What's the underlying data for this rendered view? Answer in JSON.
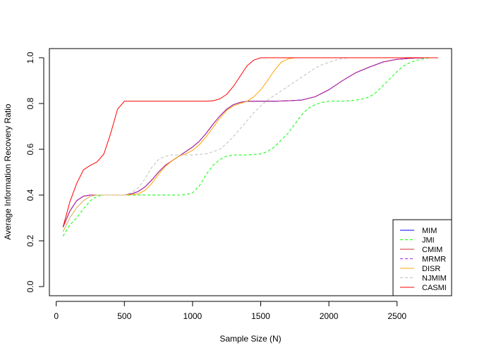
{
  "chart_data": {
    "type": "line",
    "title": "",
    "xlabel": "Sample Size (N)",
    "ylabel": "Average Information Recovery Ratio",
    "xlim": [
      -50,
      2900
    ],
    "ylim": [
      -0.04,
      1.04
    ],
    "xticks": [
      0,
      500,
      1000,
      1500,
      2000,
      2500
    ],
    "yticks": [
      0.0,
      0.2,
      0.4,
      0.6,
      0.8,
      1.0
    ],
    "xtick_labels": [
      "0",
      "500",
      "1000",
      "1500",
      "2000",
      "2500"
    ],
    "ytick_labels": [
      "0.0",
      "0.2",
      "0.4",
      "0.6",
      "0.8",
      "1.0"
    ],
    "grid": false,
    "legend_position": "bottom-right",
    "series": [
      {
        "name": "MIM",
        "color": "#0000ff",
        "dash": "solid",
        "points": [
          [
            50,
            0.26
          ],
          [
            100,
            0.33
          ],
          [
            150,
            0.375
          ],
          [
            200,
            0.395
          ],
          [
            250,
            0.4
          ],
          [
            300,
            0.4
          ],
          [
            400,
            0.4
          ],
          [
            500,
            0.4
          ],
          [
            550,
            0.405
          ],
          [
            600,
            0.415
          ],
          [
            650,
            0.435
          ],
          [
            700,
            0.465
          ],
          [
            750,
            0.5
          ],
          [
            800,
            0.53
          ],
          [
            850,
            0.55
          ],
          [
            900,
            0.57
          ],
          [
            950,
            0.59
          ],
          [
            1000,
            0.61
          ],
          [
            1050,
            0.635
          ],
          [
            1100,
            0.67
          ],
          [
            1150,
            0.71
          ],
          [
            1200,
            0.745
          ],
          [
            1250,
            0.775
          ],
          [
            1300,
            0.795
          ],
          [
            1350,
            0.805
          ],
          [
            1400,
            0.81
          ],
          [
            1500,
            0.81
          ],
          [
            1600,
            0.81
          ],
          [
            1700,
            0.812
          ],
          [
            1800,
            0.815
          ],
          [
            1900,
            0.83
          ],
          [
            2000,
            0.86
          ],
          [
            2100,
            0.9
          ],
          [
            2200,
            0.935
          ],
          [
            2300,
            0.96
          ],
          [
            2400,
            0.982
          ],
          [
            2500,
            0.993
          ],
          [
            2600,
            0.998
          ],
          [
            2700,
            1.0
          ],
          [
            2800,
            1.0
          ]
        ]
      },
      {
        "name": "JMI",
        "color": "#00ff00",
        "dash": "dashed",
        "points": [
          [
            50,
            0.22
          ],
          [
            100,
            0.27
          ],
          [
            150,
            0.3
          ],
          [
            200,
            0.34
          ],
          [
            250,
            0.375
          ],
          [
            300,
            0.395
          ],
          [
            350,
            0.4
          ],
          [
            400,
            0.4
          ],
          [
            500,
            0.4
          ],
          [
            600,
            0.4
          ],
          [
            700,
            0.4
          ],
          [
            800,
            0.4
          ],
          [
            900,
            0.4
          ],
          [
            950,
            0.402
          ],
          [
            1000,
            0.41
          ],
          [
            1050,
            0.44
          ],
          [
            1100,
            0.49
          ],
          [
            1150,
            0.53
          ],
          [
            1200,
            0.555
          ],
          [
            1250,
            0.57
          ],
          [
            1300,
            0.575
          ],
          [
            1400,
            0.575
          ],
          [
            1500,
            0.58
          ],
          [
            1550,
            0.59
          ],
          [
            1600,
            0.61
          ],
          [
            1650,
            0.64
          ],
          [
            1700,
            0.67
          ],
          [
            1750,
            0.71
          ],
          [
            1800,
            0.75
          ],
          [
            1850,
            0.78
          ],
          [
            1900,
            0.795
          ],
          [
            1950,
            0.805
          ],
          [
            2000,
            0.81
          ],
          [
            2100,
            0.81
          ],
          [
            2200,
            0.815
          ],
          [
            2250,
            0.82
          ],
          [
            2300,
            0.83
          ],
          [
            2350,
            0.85
          ],
          [
            2400,
            0.88
          ],
          [
            2450,
            0.91
          ],
          [
            2500,
            0.94
          ],
          [
            2550,
            0.965
          ],
          [
            2600,
            0.98
          ],
          [
            2650,
            0.99
          ],
          [
            2700,
            0.997
          ],
          [
            2750,
            1.0
          ],
          [
            2800,
            1.0
          ]
        ]
      },
      {
        "name": "CMIM",
        "color": "#d22c2c",
        "dash": "solid",
        "points": [
          [
            50,
            0.26
          ],
          [
            100,
            0.33
          ],
          [
            150,
            0.375
          ],
          [
            200,
            0.395
          ],
          [
            250,
            0.4
          ],
          [
            300,
            0.4
          ],
          [
            400,
            0.4
          ],
          [
            500,
            0.4
          ],
          [
            550,
            0.405
          ],
          [
            600,
            0.415
          ],
          [
            650,
            0.435
          ],
          [
            700,
            0.465
          ],
          [
            750,
            0.5
          ],
          [
            800,
            0.53
          ],
          [
            850,
            0.55
          ],
          [
            900,
            0.57
          ],
          [
            950,
            0.59
          ],
          [
            1000,
            0.61
          ],
          [
            1050,
            0.635
          ],
          [
            1100,
            0.67
          ],
          [
            1150,
            0.71
          ],
          [
            1200,
            0.745
          ],
          [
            1250,
            0.775
          ],
          [
            1300,
            0.795
          ],
          [
            1350,
            0.805
          ],
          [
            1400,
            0.81
          ],
          [
            1500,
            0.81
          ],
          [
            1600,
            0.81
          ],
          [
            1700,
            0.812
          ],
          [
            1800,
            0.815
          ],
          [
            1900,
            0.83
          ],
          [
            2000,
            0.86
          ],
          [
            2100,
            0.9
          ],
          [
            2200,
            0.935
          ],
          [
            2300,
            0.96
          ],
          [
            2400,
            0.982
          ],
          [
            2500,
            0.993
          ],
          [
            2600,
            0.998
          ],
          [
            2700,
            1.0
          ],
          [
            2800,
            1.0
          ]
        ]
      },
      {
        "name": "MRMR",
        "color": "#a020f0",
        "dash": "dashed",
        "points": [
          [
            50,
            0.26
          ],
          [
            100,
            0.33
          ],
          [
            150,
            0.375
          ],
          [
            200,
            0.395
          ],
          [
            250,
            0.4
          ],
          [
            300,
            0.4
          ],
          [
            400,
            0.4
          ],
          [
            500,
            0.4
          ],
          [
            550,
            0.405
          ],
          [
            600,
            0.415
          ],
          [
            650,
            0.435
          ],
          [
            700,
            0.465
          ],
          [
            750,
            0.5
          ],
          [
            800,
            0.53
          ],
          [
            850,
            0.55
          ],
          [
            900,
            0.57
          ],
          [
            950,
            0.59
          ],
          [
            1000,
            0.61
          ],
          [
            1050,
            0.635
          ],
          [
            1100,
            0.67
          ],
          [
            1150,
            0.71
          ],
          [
            1200,
            0.745
          ],
          [
            1250,
            0.775
          ],
          [
            1300,
            0.795
          ],
          [
            1350,
            0.805
          ],
          [
            1400,
            0.81
          ],
          [
            1500,
            0.81
          ],
          [
            1600,
            0.81
          ],
          [
            1700,
            0.812
          ],
          [
            1800,
            0.815
          ],
          [
            1900,
            0.83
          ],
          [
            2000,
            0.86
          ],
          [
            2100,
            0.9
          ],
          [
            2200,
            0.935
          ],
          [
            2300,
            0.96
          ],
          [
            2400,
            0.982
          ],
          [
            2500,
            0.993
          ],
          [
            2600,
            0.998
          ],
          [
            2700,
            1.0
          ],
          [
            2800,
            1.0
          ]
        ]
      },
      {
        "name": "DISR",
        "color": "#ffa500",
        "dash": "solid",
        "points": [
          [
            50,
            0.24
          ],
          [
            100,
            0.3
          ],
          [
            150,
            0.345
          ],
          [
            200,
            0.375
          ],
          [
            250,
            0.395
          ],
          [
            300,
            0.4
          ],
          [
            400,
            0.4
          ],
          [
            500,
            0.4
          ],
          [
            550,
            0.402
          ],
          [
            600,
            0.405
          ],
          [
            650,
            0.42
          ],
          [
            700,
            0.45
          ],
          [
            750,
            0.49
          ],
          [
            800,
            0.525
          ],
          [
            850,
            0.55
          ],
          [
            900,
            0.57
          ],
          [
            950,
            0.58
          ],
          [
            1000,
            0.595
          ],
          [
            1050,
            0.62
          ],
          [
            1100,
            0.655
          ],
          [
            1150,
            0.695
          ],
          [
            1200,
            0.735
          ],
          [
            1250,
            0.77
          ],
          [
            1300,
            0.79
          ],
          [
            1350,
            0.8
          ],
          [
            1400,
            0.81
          ],
          [
            1450,
            0.83
          ],
          [
            1500,
            0.86
          ],
          [
            1550,
            0.9
          ],
          [
            1600,
            0.945
          ],
          [
            1650,
            0.98
          ],
          [
            1700,
            0.995
          ],
          [
            1750,
            1.0
          ],
          [
            1800,
            1.0
          ],
          [
            2000,
            1.0
          ],
          [
            2400,
            1.0
          ],
          [
            2800,
            1.0
          ]
        ]
      },
      {
        "name": "NJMIM",
        "color": "#bebebe",
        "dash": "dashed",
        "points": [
          [
            50,
            0.24
          ],
          [
            100,
            0.3
          ],
          [
            150,
            0.345
          ],
          [
            200,
            0.375
          ],
          [
            250,
            0.395
          ],
          [
            300,
            0.4
          ],
          [
            400,
            0.4
          ],
          [
            500,
            0.4
          ],
          [
            550,
            0.41
          ],
          [
            600,
            0.43
          ],
          [
            650,
            0.47
          ],
          [
            700,
            0.52
          ],
          [
            750,
            0.555
          ],
          [
            800,
            0.57
          ],
          [
            850,
            0.575
          ],
          [
            900,
            0.575
          ],
          [
            1000,
            0.575
          ],
          [
            1100,
            0.58
          ],
          [
            1150,
            0.59
          ],
          [
            1200,
            0.6
          ],
          [
            1250,
            0.625
          ],
          [
            1300,
            0.655
          ],
          [
            1350,
            0.69
          ],
          [
            1400,
            0.725
          ],
          [
            1450,
            0.76
          ],
          [
            1500,
            0.79
          ],
          [
            1550,
            0.815
          ],
          [
            1600,
            0.835
          ],
          [
            1650,
            0.855
          ],
          [
            1700,
            0.875
          ],
          [
            1750,
            0.895
          ],
          [
            1800,
            0.915
          ],
          [
            1850,
            0.935
          ],
          [
            1900,
            0.955
          ],
          [
            1950,
            0.97
          ],
          [
            2000,
            0.98
          ],
          [
            2050,
            0.99
          ],
          [
            2100,
            0.997
          ],
          [
            2150,
            1.0
          ],
          [
            2800,
            1.0
          ]
        ]
      },
      {
        "name": "CASMI",
        "color": "#ff0000",
        "dash": "solid",
        "points": [
          [
            50,
            0.26
          ],
          [
            100,
            0.37
          ],
          [
            150,
            0.45
          ],
          [
            200,
            0.51
          ],
          [
            250,
            0.53
          ],
          [
            300,
            0.545
          ],
          [
            350,
            0.58
          ],
          [
            400,
            0.67
          ],
          [
            450,
            0.775
          ],
          [
            500,
            0.81
          ],
          [
            600,
            0.81
          ],
          [
            700,
            0.81
          ],
          [
            800,
            0.81
          ],
          [
            900,
            0.81
          ],
          [
            1000,
            0.81
          ],
          [
            1100,
            0.81
          ],
          [
            1150,
            0.812
          ],
          [
            1200,
            0.82
          ],
          [
            1250,
            0.84
          ],
          [
            1300,
            0.875
          ],
          [
            1350,
            0.92
          ],
          [
            1400,
            0.965
          ],
          [
            1450,
            0.99
          ],
          [
            1500,
            1.0
          ],
          [
            1600,
            1.0
          ],
          [
            2000,
            1.0
          ],
          [
            2400,
            1.0
          ],
          [
            2800,
            1.0
          ]
        ]
      }
    ]
  }
}
